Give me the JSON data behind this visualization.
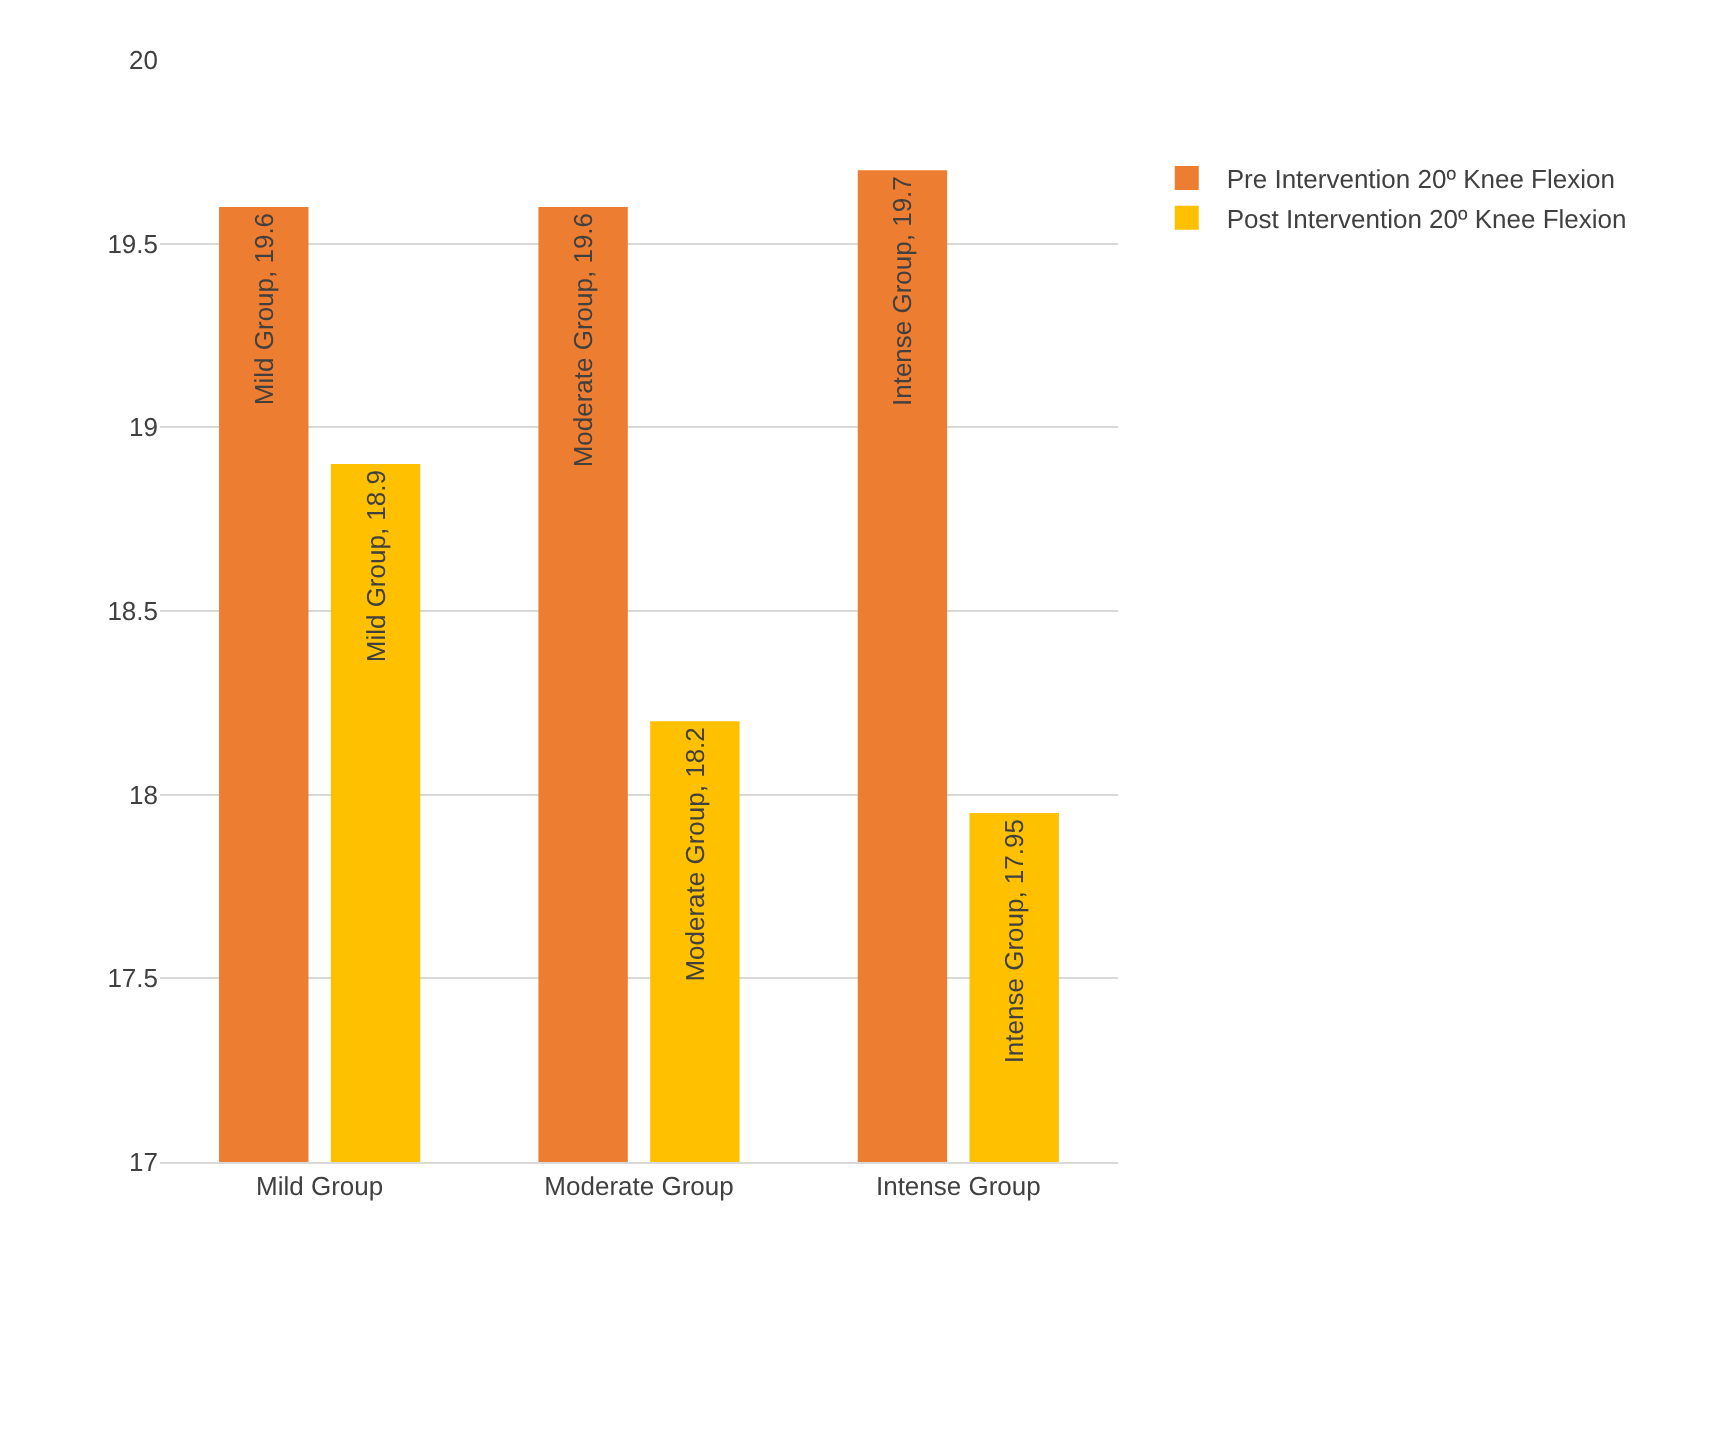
{
  "chart_data": {
    "type": "bar",
    "categories": [
      "Mild Group",
      "Moderate Group",
      "Intense Group"
    ],
    "series": [
      {
        "name": "Pre Intervention 20º Knee Flexion",
        "color": "#ed7d31",
        "values": [
          19.6,
          19.6,
          19.7
        ],
        "value_labels": [
          "Mild Group, 19.6",
          "Moderate Group, 19.6",
          "Intense Group, 19.7"
        ]
      },
      {
        "name": "Post Intervention 20º Knee Flexion",
        "color": "#ffc000",
        "values": [
          18.9,
          18.2,
          17.95
        ],
        "value_labels": [
          "Mild Group, 18.9",
          "Moderate Group, 18.2",
          "Intense Group, 17.95"
        ]
      }
    ],
    "ylim": [
      17,
      20
    ],
    "yticks": [
      17,
      17.5,
      18,
      18.5,
      19,
      19.5,
      20
    ],
    "grid": "y",
    "legend": "top right"
  }
}
